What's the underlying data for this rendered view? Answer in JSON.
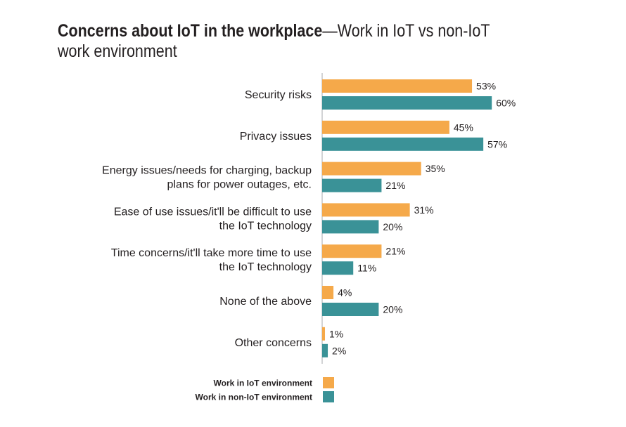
{
  "chart_data": {
    "type": "bar",
    "orientation": "horizontal",
    "title": "Concerns about IoT in the workplace",
    "subtitle": "Work in IoT vs non-IoT work environment",
    "categories": [
      [
        "Security risks"
      ],
      [
        "Privacy issues"
      ],
      [
        "Energy issues/needs for charging, backup",
        "plans for power outages, etc."
      ],
      [
        "Ease of use issues/it'll be difficult to use",
        "the IoT technology"
      ],
      [
        "Time concerns/it'll take more time to use",
        "the IoT technology"
      ],
      [
        "None of the above"
      ],
      [
        "Other concerns"
      ]
    ],
    "series": [
      {
        "name": "Work in IoT environment",
        "color": "#f5a94a",
        "values": [
          53,
          45,
          35,
          31,
          21,
          4,
          1
        ]
      },
      {
        "name": "Work in non-IoT environment",
        "color": "#3a9297",
        "values": [
          60,
          57,
          21,
          20,
          11,
          20,
          2
        ]
      }
    ],
    "value_suffix": "%",
    "xlim": [
      0,
      100
    ],
    "grid": false,
    "legend_position": "bottom-left"
  }
}
